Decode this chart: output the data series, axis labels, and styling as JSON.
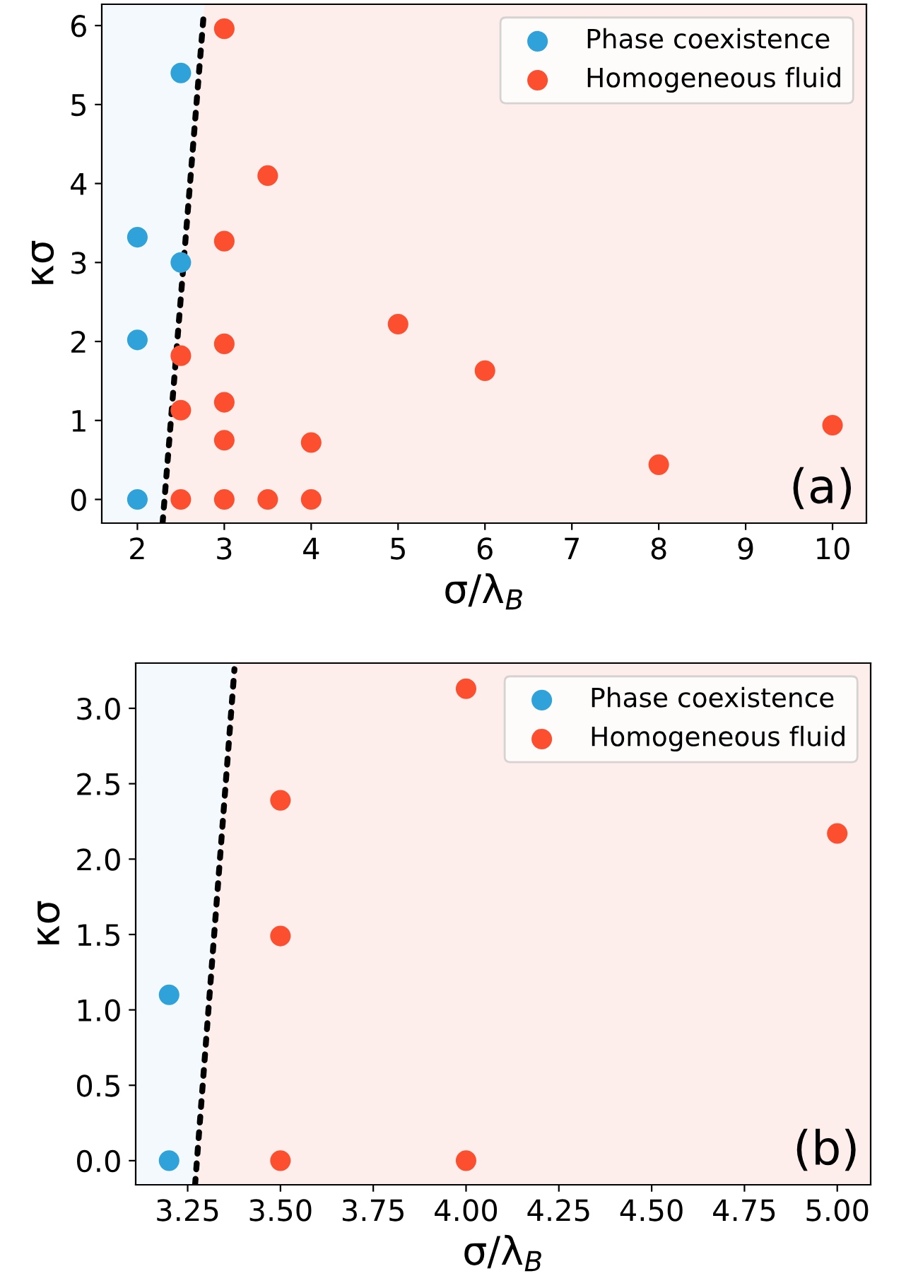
{
  "chart_data": [
    {
      "type": "scatter",
      "xlabel": "σ/λ$_{B}$",
      "ylabel": "κσ",
      "annotations": [
        "(a)"
      ],
      "xlim": [
        1.59,
        10.39
      ],
      "ylim": [
        -0.3,
        6.27
      ],
      "xticks": [
        2,
        3,
        4,
        5,
        6,
        7,
        8,
        9,
        10
      ],
      "yticks": [
        0,
        1,
        2,
        3,
        4,
        5,
        6
      ],
      "legend": "top right",
      "marker": "circle",
      "grid": false,
      "series": [
        {
          "name": "Phase coexistence",
          "color": "#30a2da",
          "x": [
            2,
            2,
            2,
            2.5,
            2.5
          ],
          "values": [
            0,
            2.02,
            3.32,
            3.0,
            5.4
          ]
        },
        {
          "name": "Homogeneous fluid",
          "color": "#fc4f30",
          "x": [
            2.5,
            3,
            3.5,
            4,
            2.5,
            3,
            4,
            2.5,
            3,
            3,
            3,
            3.5,
            3,
            5,
            6,
            8,
            10
          ],
          "values": [
            0,
            0,
            0,
            0,
            1.13,
            0.75,
            0.72,
            1.82,
            1.23,
            1.97,
            3.27,
            4.1,
            5.96,
            2.22,
            1.63,
            0.44,
            0.94
          ]
        },
        {
          "type": "line",
          "color": "#000000",
          "line_style": "dotted",
          "marker": "none",
          "x": [
            2.29,
            2.76
          ],
          "values": [
            -0.3,
            6.1
          ]
        }
      ]
    },
    {
      "type": "scatter",
      "xlabel": "σ/λ$_{B}$",
      "ylabel": "κσ",
      "annotations": [
        "(b)"
      ],
      "xlim": [
        3.11,
        5.09
      ],
      "ylim": [
        -0.16,
        3.3
      ],
      "xticks": [
        {
          "value": 3.25,
          "label": "3.25"
        },
        {
          "value": 3.5,
          "label": "3.50"
        },
        {
          "value": 3.75,
          "label": "3.75"
        },
        {
          "value": 4.0,
          "label": "4.00"
        },
        {
          "value": 4.25,
          "label": "4.25"
        },
        {
          "value": 4.5,
          "label": "4.50"
        },
        {
          "value": 4.75,
          "label": "4.75"
        },
        {
          "value": 5.0,
          "label": "5.00"
        }
      ],
      "yticks": [
        {
          "value": 0,
          "label": "0.0"
        },
        {
          "value": 0.5,
          "label": "0.5"
        },
        {
          "value": 1.0,
          "label": "1.0"
        },
        {
          "value": 1.5,
          "label": "1.5"
        },
        {
          "value": 2.0,
          "label": "2.0"
        },
        {
          "value": 2.5,
          "label": "2.5"
        },
        {
          "value": 3.0,
          "label": "3.0"
        }
      ],
      "legend": "top right",
      "marker": "circle",
      "grid": false,
      "series": [
        {
          "name": "Phase coexistence",
          "color": "#30a2da",
          "x": [
            3.2,
            3.2
          ],
          "values": [
            0,
            1.1
          ]
        },
        {
          "name": "Homogeneous fluid",
          "color": "#fc4f30",
          "x": [
            3.5,
            4,
            3.5,
            3.5,
            4,
            5
          ],
          "values": [
            0,
            0,
            1.49,
            2.39,
            3.13,
            2.17
          ]
        },
        {
          "type": "line",
          "color": "#000000",
          "line_style": "dotted",
          "marker": "none",
          "x": [
            3.27,
            3.376
          ],
          "values": [
            -0.16,
            3.26
          ]
        }
      ]
    }
  ]
}
